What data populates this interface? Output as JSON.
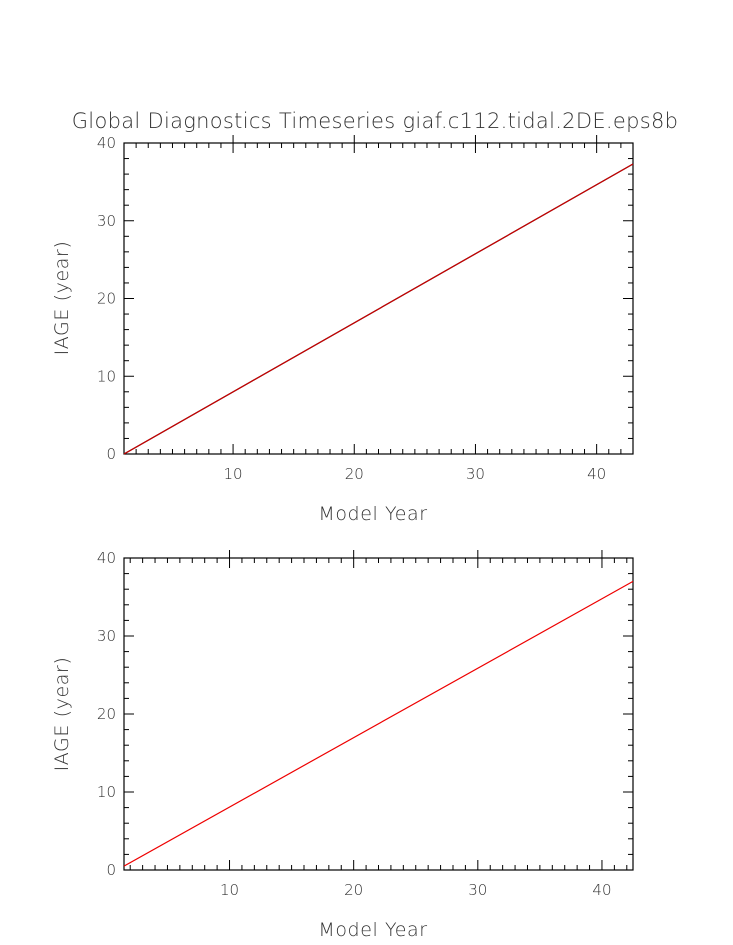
{
  "chart_data": [
    {
      "type": "line",
      "title": "Global Diagnostics Timeseries giaf.c112.tidal.2DE.eps8b",
      "xlabel": "Model Year",
      "ylabel": "IAGE (year)",
      "xlim": [
        1,
        43
      ],
      "ylim": [
        0,
        40
      ],
      "xticks": [
        10,
        20,
        30,
        40
      ],
      "yticks": [
        0,
        10,
        20,
        30,
        40
      ],
      "grid": false,
      "series": [
        {
          "color": "#000000",
          "x": [
            1,
            43
          ],
          "y": [
            0,
            37.3
          ]
        },
        {
          "color": "#cc0000",
          "x": [
            1,
            43
          ],
          "y": [
            0,
            37.3
          ]
        }
      ]
    },
    {
      "type": "line",
      "title": "",
      "xlabel": "Model Year",
      "ylabel": "IAGE (year)",
      "xlim": [
        1.5,
        42.5
      ],
      "ylim": [
        0,
        40
      ],
      "xticks": [
        10,
        20,
        30,
        40
      ],
      "yticks": [
        0,
        10,
        20,
        30,
        40
      ],
      "grid": false,
      "series": [
        {
          "color": "#ee0000",
          "x": [
            1.5,
            42.5
          ],
          "y": [
            0.5,
            37
          ]
        }
      ]
    }
  ]
}
